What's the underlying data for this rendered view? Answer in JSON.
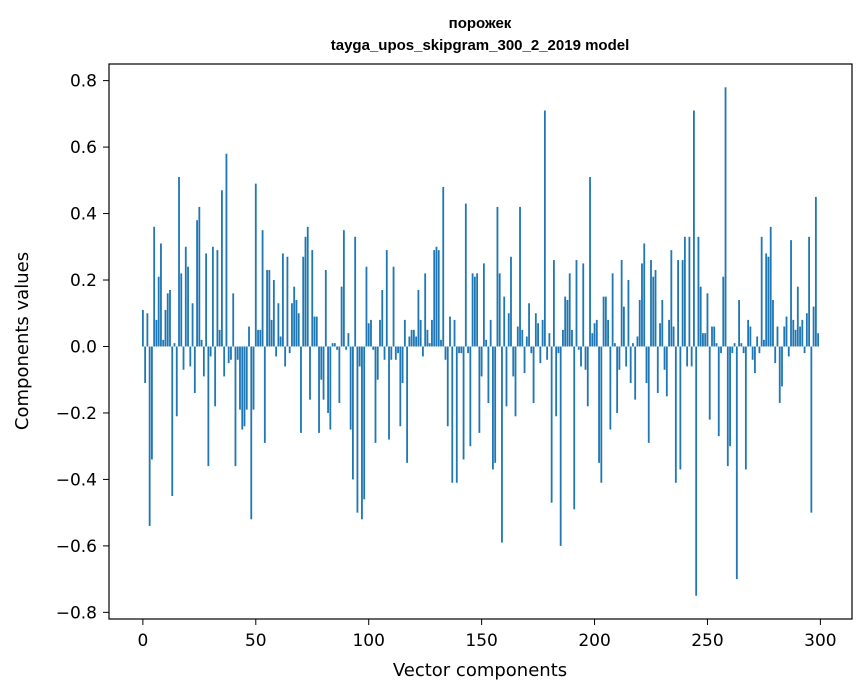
{
  "chart_data": {
    "type": "bar",
    "title": "порожек",
    "subtitle": "tayga_upos_skipgram_300_2_2019 model",
    "xlabel": "Vector components",
    "ylabel": "Components values",
    "xlim": [
      -15,
      314
    ],
    "ylim": [
      -0.82,
      0.85
    ],
    "xticks": [
      0,
      50,
      100,
      150,
      200,
      250,
      300
    ],
    "yticks": [
      -0.8,
      -0.6,
      -0.4,
      -0.2,
      0.0,
      0.2,
      0.4,
      0.6,
      0.8
    ],
    "ytick_labels": [
      "−0.8",
      "−0.6",
      "−0.4",
      "−0.2",
      "0.0",
      "0.2",
      "0.4",
      "0.6",
      "0.8"
    ],
    "bar_color": "#1f77b4",
    "grid": false,
    "x": [
      0,
      1,
      2,
      3,
      4,
      5,
      6,
      7,
      8,
      9,
      10,
      11,
      12,
      13,
      14,
      15,
      16,
      17,
      18,
      19,
      20,
      21,
      22,
      23,
      24,
      25,
      26,
      27,
      28,
      29,
      30,
      31,
      32,
      33,
      34,
      35,
      36,
      37,
      38,
      39,
      40,
      41,
      42,
      43,
      44,
      45,
      46,
      47,
      48,
      49,
      50,
      51,
      52,
      53,
      54,
      55,
      56,
      57,
      58,
      59,
      60,
      61,
      62,
      63,
      64,
      65,
      66,
      67,
      68,
      69,
      70,
      71,
      72,
      73,
      74,
      75,
      76,
      77,
      78,
      79,
      80,
      81,
      82,
      83,
      84,
      85,
      86,
      87,
      88,
      89,
      90,
      91,
      92,
      93,
      94,
      95,
      96,
      97,
      98,
      99,
      100,
      101,
      102,
      103,
      104,
      105,
      106,
      107,
      108,
      109,
      110,
      111,
      112,
      113,
      114,
      115,
      116,
      117,
      118,
      119,
      120,
      121,
      122,
      123,
      124,
      125,
      126,
      127,
      128,
      129,
      130,
      131,
      132,
      133,
      134,
      135,
      136,
      137,
      138,
      139,
      140,
      141,
      142,
      143,
      144,
      145,
      146,
      147,
      148,
      149,
      150,
      151,
      152,
      153,
      154,
      155,
      156,
      157,
      158,
      159,
      160,
      161,
      162,
      163,
      164,
      165,
      166,
      167,
      168,
      169,
      170,
      171,
      172,
      173,
      174,
      175,
      176,
      177,
      178,
      179,
      180,
      181,
      182,
      183,
      184,
      185,
      186,
      187,
      188,
      189,
      190,
      191,
      192,
      193,
      194,
      195,
      196,
      197,
      198,
      199,
      200,
      201,
      202,
      203,
      204,
      205,
      206,
      207,
      208,
      209,
      210,
      211,
      212,
      213,
      214,
      215,
      216,
      217,
      218,
      219,
      220,
      221,
      222,
      223,
      224,
      225,
      226,
      227,
      228,
      229,
      230,
      231,
      232,
      233,
      234,
      235,
      236,
      237,
      238,
      239,
      240,
      241,
      242,
      243,
      244,
      245,
      246,
      247,
      248,
      249,
      250,
      251,
      252,
      253,
      254,
      255,
      256,
      257,
      258,
      259,
      260,
      261,
      262,
      263,
      264,
      265,
      266,
      267,
      268,
      269,
      270,
      271,
      272,
      273,
      274,
      275,
      276,
      277,
      278,
      279,
      280,
      281,
      282,
      283,
      284,
      285,
      286,
      287,
      288,
      289,
      290,
      291,
      292,
      293,
      294,
      295,
      296,
      297,
      298,
      299
    ],
    "values": [
      0.11,
      -0.11,
      0.1,
      -0.54,
      -0.34,
      0.36,
      0.08,
      0.21,
      0.31,
      0.02,
      0.11,
      0.16,
      0.17,
      -0.45,
      0.01,
      -0.21,
      0.51,
      0.22,
      -0.07,
      0.3,
      0.24,
      -0.06,
      0.13,
      -0.14,
      0.38,
      0.42,
      0.02,
      -0.09,
      0.28,
      -0.36,
      -0.03,
      0.3,
      -0.18,
      0.29,
      0.05,
      0.47,
      -0.09,
      0.58,
      -0.05,
      -0.04,
      0.16,
      -0.36,
      -0.04,
      -0.19,
      -0.25,
      -0.24,
      -0.19,
      0.06,
      -0.52,
      -0.19,
      0.49,
      0.05,
      0.05,
      0.35,
      -0.29,
      0.23,
      0.23,
      0.08,
      0.2,
      -0.03,
      0.13,
      0.03,
      0.28,
      -0.06,
      0.27,
      -0.02,
      0.13,
      0.18,
      0.14,
      0.1,
      -0.26,
      0.27,
      0.33,
      0.36,
      -0.16,
      0.29,
      0.09,
      0.09,
      -0.26,
      -0.1,
      -0.16,
      0.23,
      -0.2,
      -0.25,
      0.01,
      0.01,
      -0.01,
      -0.17,
      0.18,
      0.35,
      -0.01,
      0.04,
      -0.25,
      -0.4,
      0.33,
      -0.5,
      -0.06,
      -0.52,
      -0.46,
      0.24,
      0.07,
      0.08,
      -0.01,
      -0.29,
      -0.1,
      0.08,
      0.17,
      -0.04,
      0.29,
      -0.28,
      -0.04,
      0.24,
      -0.04,
      -0.02,
      -0.24,
      -0.11,
      0.08,
      -0.35,
      0.03,
      0.05,
      0.05,
      0.03,
      0.17,
      0.08,
      -0.03,
      0.22,
      0.05,
      0.01,
      0.08,
      0.29,
      0.3,
      0.29,
      0.02,
      0.48,
      -0.04,
      -0.24,
      0.09,
      -0.41,
      0.08,
      -0.41,
      -0.02,
      -0.02,
      -0.34,
      0.43,
      -0.02,
      -0.3,
      0.22,
      0.21,
      0.22,
      -0.26,
      -0.09,
      0.25,
      0.02,
      -0.17,
      0.08,
      -0.37,
      -0.35,
      0.42,
      0.22,
      -0.59,
      0.15,
      -0.18,
      0.1,
      0.27,
      -0.09,
      -0.21,
      0.06,
      0.42,
      0.05,
      -0.08,
      0.03,
      0.13,
      -0.02,
      -0.17,
      0.1,
      0.07,
      -0.05,
      0.08,
      0.71,
      -0.04,
      0.04,
      -0.47,
      0.26,
      -0.21,
      -0.02,
      -0.6,
      0.05,
      0.15,
      0.14,
      0.22,
      0.05,
      -0.49,
      0.26,
      -0.01,
      -0.06,
      0.25,
      -0.07,
      -0.18,
      0.51,
      0.04,
      0.07,
      0.08,
      -0.35,
      -0.41,
      0.15,
      0.15,
      0.08,
      -0.25,
      0.22,
      0.01,
      -0.2,
      -0.07,
      0.26,
      0.12,
      -0.06,
      0.2,
      -0.11,
      0.01,
      -0.16,
      0.03,
      0.14,
      0.25,
      0.31,
      -0.11,
      -0.29,
      0.26,
      0.21,
      0.23,
      -0.14,
      0.07,
      0.14,
      -0.07,
      -0.15,
      0.08,
      0.29,
      0.06,
      -0.41,
      0.26,
      -0.37,
      0.26,
      0.33,
      -0.06,
      0.33,
      -0.06,
      0.71,
      -0.75,
      0.33,
      0.18,
      0.04,
      0.04,
      0.16,
      -0.22,
      0.06,
      0.06,
      0.01,
      -0.27,
      -0.02,
      0.21,
      0.78,
      -0.36,
      -0.3,
      -0.02,
      0.01,
      -0.7,
      0.14,
      0.01,
      -0.02,
      -0.37,
      0.08,
      0.06,
      -0.04,
      -0.08,
      0.03,
      -0.02,
      0.33,
      0.02,
      0.28,
      0.27,
      0.36,
      0.14,
      -0.05,
      0.06,
      -0.17,
      -0.12,
      0.06,
      0.09,
      -0.03,
      0.32,
      0.08,
      0.05,
      0.18,
      0.06,
      0.08,
      -0.02,
      0.1,
      0.33,
      -0.5,
      0.12,
      0.45,
      0.04
    ]
  }
}
